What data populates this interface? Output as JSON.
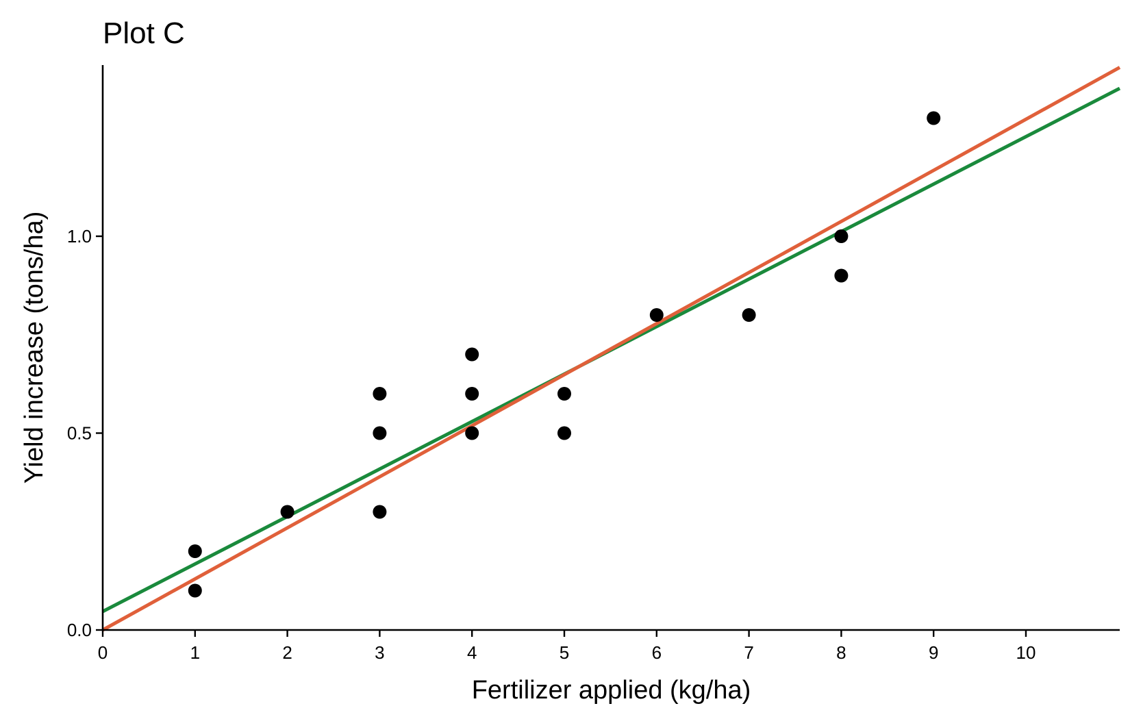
{
  "chart_data": {
    "type": "scatter",
    "title": "Plot C",
    "xlabel": "Fertilizer applied (kg/ha)",
    "ylabel": "Yield increase (tons/ha)",
    "xlim": [
      0,
      11
    ],
    "ylim": [
      0,
      1.43
    ],
    "xticks": [
      0,
      1,
      2,
      3,
      4,
      5,
      6,
      7,
      8,
      9,
      10
    ],
    "xtick_labels": [
      "0",
      "1",
      "2",
      "3",
      "4",
      "5",
      "6",
      "7",
      "8",
      "9",
      "10"
    ],
    "yticks": [
      0.0,
      0.5,
      1.0
    ],
    "ytick_labels": [
      "0.0",
      "0.5",
      "1.0"
    ],
    "grid": false,
    "points": [
      {
        "x": 1,
        "y": 0.2
      },
      {
        "x": 1,
        "y": 0.1
      },
      {
        "x": 2,
        "y": 0.3
      },
      {
        "x": 3,
        "y": 0.6
      },
      {
        "x": 3,
        "y": 0.5
      },
      {
        "x": 3,
        "y": 0.3
      },
      {
        "x": 4,
        "y": 0.7
      },
      {
        "x": 4,
        "y": 0.6
      },
      {
        "x": 4,
        "y": 0.5
      },
      {
        "x": 5,
        "y": 0.6
      },
      {
        "x": 5,
        "y": 0.5
      },
      {
        "x": 6,
        "y": 0.8
      },
      {
        "x": 7,
        "y": 0.8
      },
      {
        "x": 8,
        "y": 1.0
      },
      {
        "x": 8,
        "y": 0.9
      },
      {
        "x": 9,
        "y": 1.3
      }
    ],
    "point_color": "#000000",
    "lines": [
      {
        "intercept": 0.047,
        "slope": 0.1206,
        "color": "#1a8a3c"
      },
      {
        "intercept": 0.0,
        "slope": 0.1297,
        "color": "#e0603a"
      }
    ]
  }
}
